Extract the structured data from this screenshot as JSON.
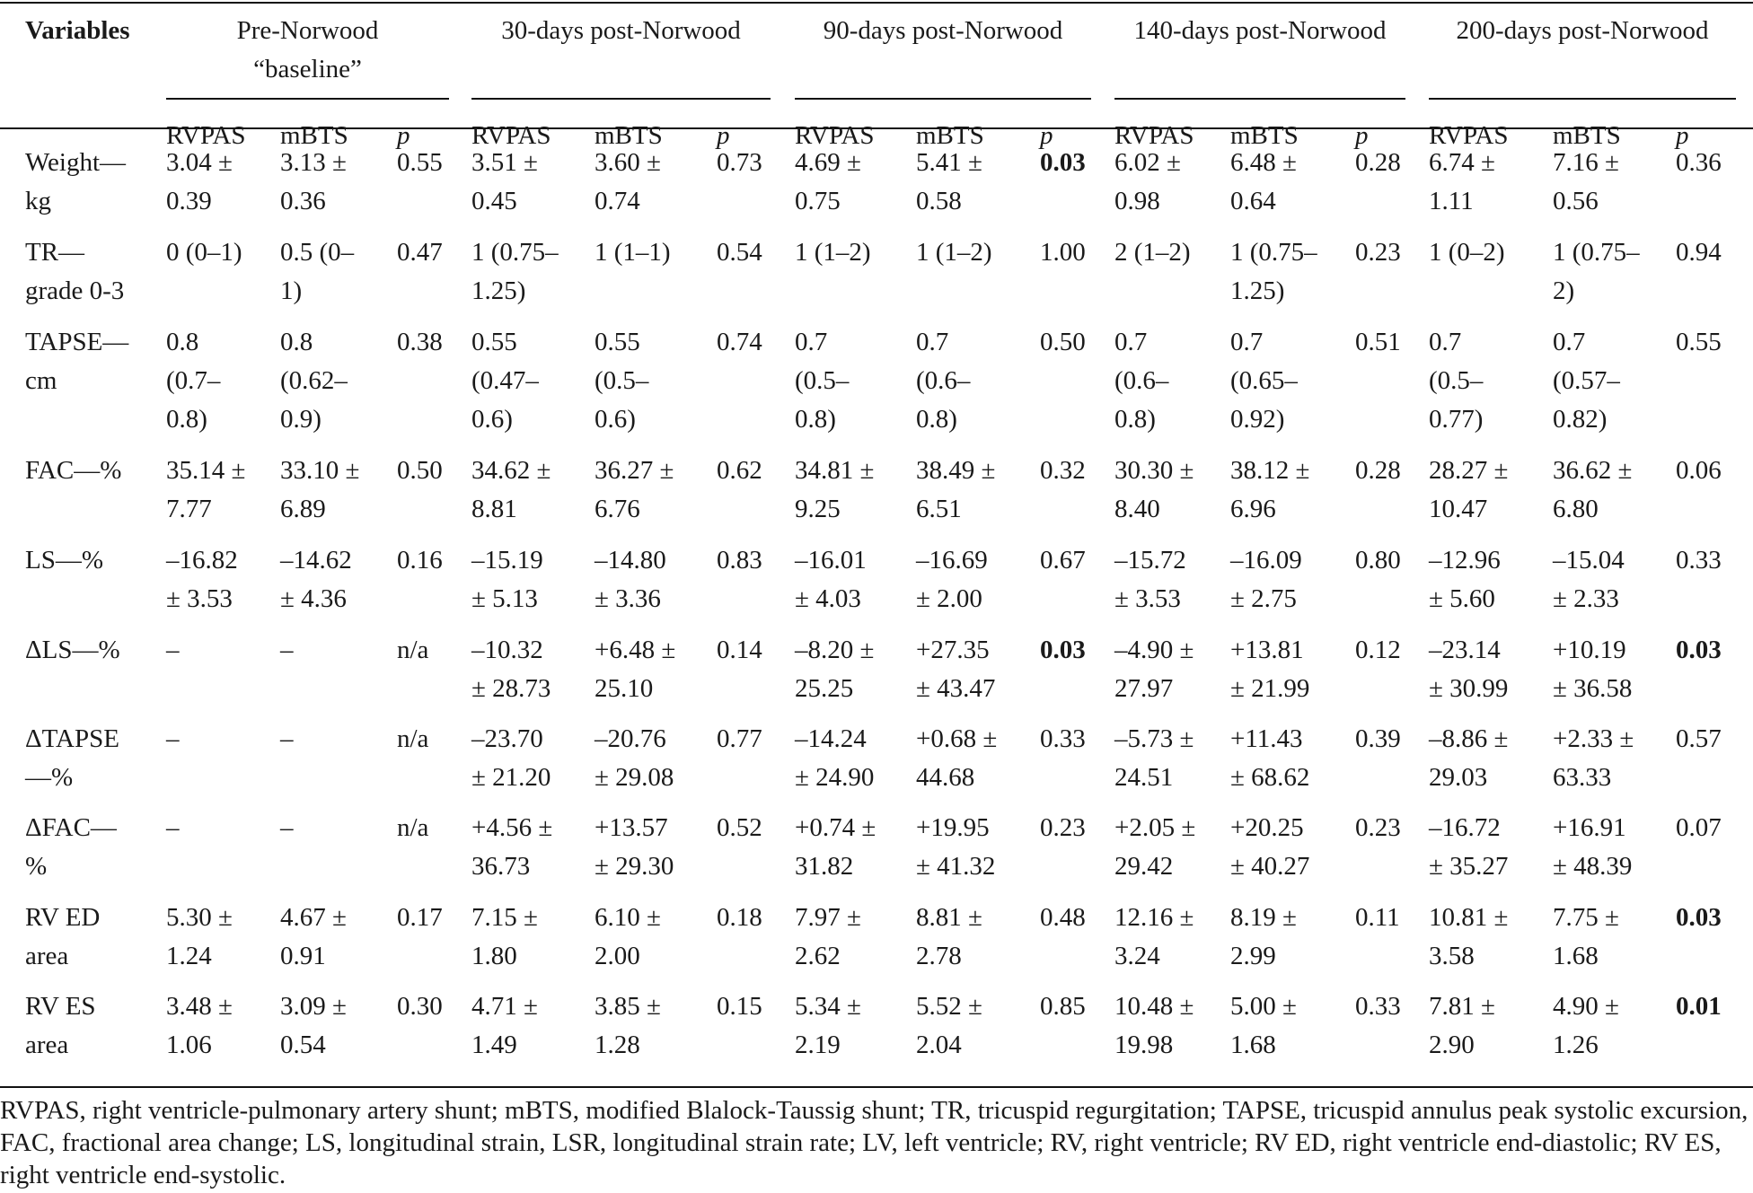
{
  "header": {
    "variables_label": "Variables",
    "groups": [
      {
        "lines": [
          "Pre-Norwood",
          "“baseline”"
        ]
      },
      {
        "lines": [
          "30-days post-Norwood"
        ]
      },
      {
        "lines": [
          "90-days post-Norwood"
        ]
      },
      {
        "lines": [
          "140-days post-Norwood"
        ]
      },
      {
        "lines": [
          "200-days post-Norwood"
        ]
      }
    ],
    "subheaders": [
      "RVPAS",
      "mBTS",
      "p"
    ]
  },
  "rows": [
    {
      "var": [
        "Weight—",
        "kg"
      ],
      "cells": [
        [
          "3.04 ±",
          "0.39"
        ],
        [
          "3.13 ±",
          "0.36"
        ],
        [
          "0.55"
        ],
        [
          "3.51 ±",
          "0.45"
        ],
        [
          "3.60 ±",
          "0.74"
        ],
        [
          "0.73"
        ],
        [
          "4.69 ±",
          "0.75"
        ],
        [
          "5.41 ±",
          "0.58"
        ],
        [
          "0.03"
        ],
        [
          "6.02 ±",
          "0.98"
        ],
        [
          "6.48 ±",
          "0.64"
        ],
        [
          "0.28"
        ],
        [
          "6.74 ±",
          "1.11"
        ],
        [
          "7.16 ±",
          "0.56"
        ],
        [
          "0.36"
        ]
      ],
      "bold_p": [
        2
      ]
    },
    {
      "var": [
        "TR—",
        "grade 0-3"
      ],
      "cells": [
        [
          "0 (0–1)"
        ],
        [
          "0.5 (0–",
          "1)"
        ],
        [
          "0.47"
        ],
        [
          "1 (0.75–",
          "1.25)"
        ],
        [
          "1 (1–1)"
        ],
        [
          "0.54"
        ],
        [
          "1 (1–2)"
        ],
        [
          "1 (1–2)"
        ],
        [
          "1.00"
        ],
        [
          "2 (1–2)"
        ],
        [
          "1 (0.75–",
          "1.25)"
        ],
        [
          "0.23"
        ],
        [
          "1 (0–2)"
        ],
        [
          "1 (0.75–",
          "2)"
        ],
        [
          "0.94"
        ]
      ],
      "bold_p": []
    },
    {
      "var": [
        "TAPSE—",
        "cm"
      ],
      "cells": [
        [
          "0.8",
          "(0.7–",
          "0.8)"
        ],
        [
          "0.8",
          "(0.62–",
          "0.9)"
        ],
        [
          "0.38"
        ],
        [
          "0.55",
          "(0.47–",
          "0.6)"
        ],
        [
          "0.55",
          "(0.5–",
          "0.6)"
        ],
        [
          "0.74"
        ],
        [
          "0.7",
          "(0.5–",
          "0.8)"
        ],
        [
          "0.7",
          "(0.6–",
          "0.8)"
        ],
        [
          "0.50"
        ],
        [
          "0.7",
          "(0.6–",
          "0.8)"
        ],
        [
          "0.7",
          "(0.65–",
          "0.92)"
        ],
        [
          "0.51"
        ],
        [
          "0.7",
          "(0.5–",
          "0.77)"
        ],
        [
          "0.7",
          "(0.57–",
          "0.82)"
        ],
        [
          "0.55"
        ]
      ],
      "bold_p": []
    },
    {
      "var": [
        "FAC—%"
      ],
      "cells": [
        [
          "35.14 ±",
          "7.77"
        ],
        [
          "33.10 ±",
          "6.89"
        ],
        [
          "0.50"
        ],
        [
          "34.62 ±",
          "8.81"
        ],
        [
          "36.27 ±",
          "6.76"
        ],
        [
          "0.62"
        ],
        [
          "34.81 ±",
          "9.25"
        ],
        [
          "38.49 ±",
          "6.51"
        ],
        [
          "0.32"
        ],
        [
          "30.30 ±",
          "8.40"
        ],
        [
          "38.12 ±",
          "6.96"
        ],
        [
          "0.28"
        ],
        [
          "28.27 ±",
          "10.47"
        ],
        [
          "36.62 ±",
          "6.80"
        ],
        [
          "0.06"
        ]
      ],
      "bold_p": []
    },
    {
      "var": [
        "LS—%"
      ],
      "cells": [
        [
          "–16.82",
          "± 3.53"
        ],
        [
          "–14.62",
          "± 4.36"
        ],
        [
          "0.16"
        ],
        [
          "–15.19",
          "± 5.13"
        ],
        [
          "–14.80",
          "± 3.36"
        ],
        [
          "0.83"
        ],
        [
          "–16.01",
          "± 4.03"
        ],
        [
          "–16.69",
          "± 2.00"
        ],
        [
          "0.67"
        ],
        [
          "–15.72",
          "± 3.53"
        ],
        [
          "–16.09",
          "± 2.75"
        ],
        [
          "0.80"
        ],
        [
          "–12.96",
          "± 5.60"
        ],
        [
          "–15.04",
          "± 2.33"
        ],
        [
          "0.33"
        ]
      ],
      "bold_p": []
    },
    {
      "var": [
        "ΔLS—%"
      ],
      "cells": [
        [
          "–"
        ],
        [
          "–"
        ],
        [
          "n/a"
        ],
        [
          "–10.32",
          "± 28.73"
        ],
        [
          "+6.48 ±",
          "25.10"
        ],
        [
          "0.14"
        ],
        [
          "–8.20 ±",
          "25.25"
        ],
        [
          "+27.35",
          "± 43.47"
        ],
        [
          "0.03"
        ],
        [
          "–4.90 ±",
          "27.97"
        ],
        [
          "+13.81",
          "± 21.99"
        ],
        [
          "0.12"
        ],
        [
          "–23.14",
          "± 30.99"
        ],
        [
          "+10.19",
          "± 36.58"
        ],
        [
          "0.03"
        ]
      ],
      "bold_p": [
        2,
        4
      ]
    },
    {
      "var": [
        "ΔTAPSE",
        "—%"
      ],
      "cells": [
        [
          "–"
        ],
        [
          "–"
        ],
        [
          "n/a"
        ],
        [
          "–23.70",
          "± 21.20"
        ],
        [
          "–20.76",
          "± 29.08"
        ],
        [
          "0.77"
        ],
        [
          "–14.24",
          "± 24.90"
        ],
        [
          "+0.68 ±",
          "44.68"
        ],
        [
          "0.33"
        ],
        [
          "–5.73 ±",
          "24.51"
        ],
        [
          "+11.43",
          "± 68.62"
        ],
        [
          "0.39"
        ],
        [
          "–8.86 ±",
          "29.03"
        ],
        [
          "+2.33 ±",
          "63.33"
        ],
        [
          "0.57"
        ]
      ],
      "bold_p": []
    },
    {
      "var": [
        "ΔFAC—",
        "%"
      ],
      "cells": [
        [
          "–"
        ],
        [
          "–"
        ],
        [
          "n/a"
        ],
        [
          "+4.56 ±",
          "36.73"
        ],
        [
          "+13.57",
          "± 29.30"
        ],
        [
          "0.52"
        ],
        [
          "+0.74 ±",
          "31.82"
        ],
        [
          "+19.95",
          "± 41.32"
        ],
        [
          "0.23"
        ],
        [
          "+2.05 ±",
          "29.42"
        ],
        [
          "+20.25",
          "± 40.27"
        ],
        [
          "0.23"
        ],
        [
          "–16.72",
          "± 35.27"
        ],
        [
          "+16.91",
          "± 48.39"
        ],
        [
          "0.07"
        ]
      ],
      "bold_p": []
    },
    {
      "var": [
        "RV ED",
        "area"
      ],
      "cells": [
        [
          "5.30 ±",
          "1.24"
        ],
        [
          "4.67 ±",
          "0.91"
        ],
        [
          "0.17"
        ],
        [
          "7.15 ±",
          "1.80"
        ],
        [
          "6.10 ±",
          "2.00"
        ],
        [
          "0.18"
        ],
        [
          "7.97 ±",
          "2.62"
        ],
        [
          "8.81 ±",
          "2.78"
        ],
        [
          "0.48"
        ],
        [
          "12.16 ±",
          "3.24"
        ],
        [
          "8.19 ±",
          "2.99"
        ],
        [
          "0.11"
        ],
        [
          "10.81 ±",
          "3.58"
        ],
        [
          "7.75 ±",
          "1.68"
        ],
        [
          "0.03"
        ]
      ],
      "bold_p": [
        4
      ]
    },
    {
      "var": [
        "RV ES",
        "area"
      ],
      "cells": [
        [
          "3.48 ±",
          "1.06"
        ],
        [
          "3.09 ±",
          "0.54"
        ],
        [
          "0.30"
        ],
        [
          "4.71 ±",
          "1.49"
        ],
        [
          "3.85 ±",
          "1.28"
        ],
        [
          "0.15"
        ],
        [
          "5.34 ±",
          "2.19"
        ],
        [
          "5.52 ±",
          "2.04"
        ],
        [
          "0.85"
        ],
        [
          "10.48 ±",
          "19.98"
        ],
        [
          "5.00 ±",
          "1.68"
        ],
        [
          "0.33"
        ],
        [
          "7.81 ±",
          "2.90"
        ],
        [
          "4.90 ±",
          "1.26"
        ],
        [
          "0.01"
        ]
      ],
      "bold_p": [
        4
      ]
    }
  ],
  "footnote": "RVPAS, right ventricle-pulmonary artery shunt; mBTS, modified Blalock-Taussig shunt; TR, tricuspid regurgitation; TAPSE, tricuspid annulus peak systolic excursion, FAC, fractional area change; LS, longitudinal strain, LSR, longitudinal strain rate; LV, left ventricle; RV, right ventricle; RV ED, right ventricle end-diastolic; RV ES, right ventricle end-systolic."
}
